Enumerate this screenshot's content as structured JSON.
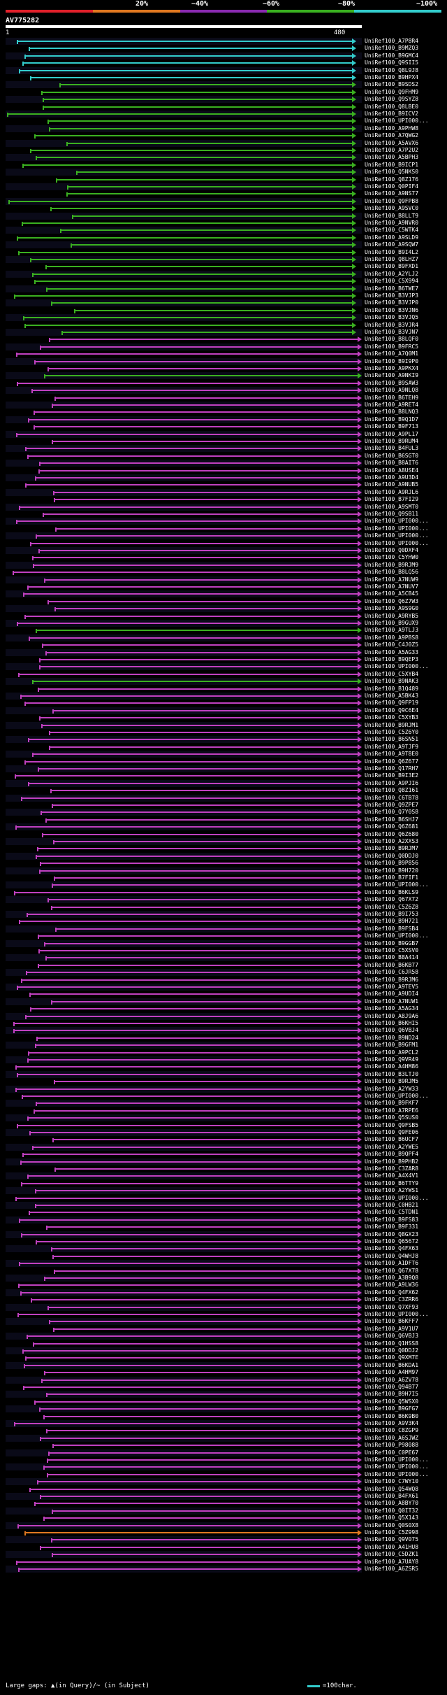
{
  "legend": {
    "labels": [
      "20%",
      "~40%",
      "~60%",
      "~80%",
      "~100%"
    ],
    "colors": [
      "#e0202a",
      "#e07820",
      "#8a2ab0",
      "#3ab020",
      "#33cccc"
    ]
  },
  "query": {
    "name": "AV775282",
    "start": "1",
    "end": "480"
  },
  "footer": {
    "gaps_text": "Large gaps: ▲(in Query)/~ (in Subject)",
    "scale_text": "=100char."
  },
  "hits": [
    {
      "label": "UniRef100_A7P8R4",
      "color": "#33cccc"
    },
    {
      "label": "UniRef100_B9MZQ3",
      "color": "#33cccc"
    },
    {
      "label": "UniRef100_B9GMC4",
      "color": "#33cccc"
    },
    {
      "label": "UniRef100_Q9SII5",
      "color": "#33cccc"
    },
    {
      "label": "UniRef100_Q8L9J8",
      "color": "#33cccc"
    },
    {
      "label": "UniRef100_B9HPX4",
      "color": "#33cccc"
    },
    {
      "label": "UniRef100_B9SDS2",
      "color": "#3ab020"
    },
    {
      "label": "UniRef100_Q9FHM9",
      "color": "#3ab020"
    },
    {
      "label": "UniRef100_Q9SYZ8",
      "color": "#3ab020"
    },
    {
      "label": "UniRef100_Q8LBE0",
      "color": "#3ab020"
    },
    {
      "label": "UniRef100_B9ICV2",
      "color": "#3ab020"
    },
    {
      "label": "UniRef100_UPI000...",
      "color": "#3ab020"
    },
    {
      "label": "UniRef100_A9PHW8",
      "color": "#3ab020"
    },
    {
      "label": "UniRef100_A7QWG2",
      "color": "#3ab020"
    },
    {
      "label": "UniRef100_A5AVX6",
      "color": "#3ab020"
    },
    {
      "label": "UniRef100_A7P2U2",
      "color": "#3ab020"
    },
    {
      "label": "UniRef100_A5BPH3",
      "color": "#3ab020"
    },
    {
      "label": "UniRef100_B9ICP1",
      "color": "#3ab020"
    },
    {
      "label": "UniRef100_Q5NKS0",
      "color": "#3ab020"
    },
    {
      "label": "UniRef100_Q8Z176",
      "color": "#3ab020"
    },
    {
      "label": "UniRef100_Q0PIF4",
      "color": "#3ab020"
    },
    {
      "label": "UniRef100_A9NS77",
      "color": "#3ab020"
    },
    {
      "label": "UniRef100_Q9FPB8",
      "color": "#3ab020"
    },
    {
      "label": "UniRef100_A9SVC0",
      "color": "#3ab020"
    },
    {
      "label": "UniRef100_B8LLT9",
      "color": "#3ab020"
    },
    {
      "label": "UniRef100_A9NVR0",
      "color": "#3ab020"
    },
    {
      "label": "UniRef100_C5WTK4",
      "color": "#3ab020"
    },
    {
      "label": "UniRef100_A9SLD9",
      "color": "#3ab020"
    },
    {
      "label": "UniRef100_A9SQW7",
      "color": "#3ab020"
    },
    {
      "label": "UniRef100_B9I4L2",
      "color": "#3ab020"
    },
    {
      "label": "UniRef100_Q8LHZ7",
      "color": "#3ab020"
    },
    {
      "label": "UniRef100_B9FXD1",
      "color": "#3ab020"
    },
    {
      "label": "UniRef100_A2YLJ2",
      "color": "#3ab020"
    },
    {
      "label": "UniRef100_C5X994",
      "color": "#3ab020"
    },
    {
      "label": "UniRef100_B6TWE7",
      "color": "#3ab020"
    },
    {
      "label": "UniRef100_B3VJP3",
      "color": "#3ab020"
    },
    {
      "label": "UniRef100_B3VJP0",
      "color": "#3ab020"
    },
    {
      "label": "UniRef100_B3VJN6",
      "color": "#3ab020"
    },
    {
      "label": "UniRef100_B3VJQ5",
      "color": "#3ab020"
    },
    {
      "label": "UniRef100_B3VJR4",
      "color": "#3ab020"
    },
    {
      "label": "UniRef100_B3VJN7",
      "color": "#3ab020"
    },
    {
      "label": "UniRef100_B8LQF0",
      "color": "#c040c0"
    },
    {
      "label": "UniRef100_B9FRC5",
      "color": "#c040c0"
    },
    {
      "label": "UniRef100_A7Q0M1",
      "color": "#c040c0"
    },
    {
      "label": "UniRef100_B9I9P0",
      "color": "#c040c0"
    },
    {
      "label": "UniRef100_A9PKX4",
      "color": "#c040c0"
    },
    {
      "label": "UniRef100_A9NKI9",
      "color": "#3ab020"
    },
    {
      "label": "UniRef100_B9SAW3",
      "color": "#c040c0"
    },
    {
      "label": "UniRef100_A9NLQ8",
      "color": "#c040c0"
    },
    {
      "label": "UniRef100_B6TEH9",
      "color": "#c040c0"
    },
    {
      "label": "UniRef100_A9RET4",
      "color": "#c040c0"
    },
    {
      "label": "UniRef100_B8LNQ3",
      "color": "#c040c0"
    },
    {
      "label": "UniRef100_B9Q1D7",
      "color": "#c040c0"
    },
    {
      "label": "UniRef100_B9F713",
      "color": "#c040c0"
    },
    {
      "label": "UniRef100_A9PL17",
      "color": "#c040c0"
    },
    {
      "label": "UniRef100_B9RUM4",
      "color": "#c040c0"
    },
    {
      "label": "UniRef100_B4FUL3",
      "color": "#c040c0"
    },
    {
      "label": "UniRef100_B6SGT0",
      "color": "#c040c0"
    },
    {
      "label": "UniRef100_B8AIT6",
      "color": "#c040c0"
    },
    {
      "label": "UniRef100_A8USE4",
      "color": "#c040c0"
    },
    {
      "label": "UniRef100_A9U3D4",
      "color": "#c040c0"
    },
    {
      "label": "UniRef100_A9NUB5",
      "color": "#c040c0"
    },
    {
      "label": "UniRef100_A9RJL6",
      "color": "#c040c0"
    },
    {
      "label": "UniRef100_B7FI29",
      "color": "#c040c0"
    },
    {
      "label": "UniRef100_A9SMT0",
      "color": "#c040c0"
    },
    {
      "label": "UniRef100_Q9SB11",
      "color": "#c040c0"
    },
    {
      "label": "UniRef100_UPI000...",
      "color": "#c040c0"
    },
    {
      "label": "UniRef100_UPI000...",
      "color": "#c040c0"
    },
    {
      "label": "UniRef100_UPI000...",
      "color": "#c040c0"
    },
    {
      "label": "UniRef100_UPI000...",
      "color": "#c040c0"
    },
    {
      "label": "UniRef100_Q0DXF4",
      "color": "#c040c0"
    },
    {
      "label": "UniRef100_C5YHW0",
      "color": "#c040c0"
    },
    {
      "label": "UniRef100_B9RJM9",
      "color": "#c040c0"
    },
    {
      "label": "UniRef100_B8LQ56",
      "color": "#c040c0"
    },
    {
      "label": "UniRef100_A7NUW9",
      "color": "#c040c0"
    },
    {
      "label": "UniRef100_A7NUV7",
      "color": "#c040c0"
    },
    {
      "label": "UniRef100_A5CB45",
      "color": "#c040c0"
    },
    {
      "label": "UniRef100_Q6Z7W3",
      "color": "#c040c0"
    },
    {
      "label": "UniRef100_A9S9G0",
      "color": "#c040c0"
    },
    {
      "label": "UniRef100_A9RYB5",
      "color": "#c040c0"
    },
    {
      "label": "UniRef100_B9GUX9",
      "color": "#c040c0"
    },
    {
      "label": "UniRef100_A9TLJ3",
      "color": "#3ab020"
    },
    {
      "label": "UniRef100_A9PBS8",
      "color": "#c040c0"
    },
    {
      "label": "UniRef100_C4J0Z5",
      "color": "#c040c0"
    },
    {
      "label": "UniRef100_A5AG33",
      "color": "#c040c0"
    },
    {
      "label": "UniRef100_B9QEP3",
      "color": "#c040c0"
    },
    {
      "label": "UniRef100_UPI000...",
      "color": "#c040c0"
    },
    {
      "label": "UniRef100_C5XYB4",
      "color": "#c040c0"
    },
    {
      "label": "UniRef100_B9NAK3",
      "color": "#3ab020"
    },
    {
      "label": "UniRef100_B1Q489",
      "color": "#c040c0"
    },
    {
      "label": "UniRef100_A5BK43",
      "color": "#c040c0"
    },
    {
      "label": "UniRef100_Q9FP19",
      "color": "#c040c0"
    },
    {
      "label": "UniRef100_Q9C6E4",
      "color": "#c040c0"
    },
    {
      "label": "UniRef100_C5XYB3",
      "color": "#c040c0"
    },
    {
      "label": "UniRef100_B9RJM1",
      "color": "#c040c0"
    },
    {
      "label": "UniRef100_C5Z6Y0",
      "color": "#c040c0"
    },
    {
      "label": "UniRef100_B6SN51",
      "color": "#c040c0"
    },
    {
      "label": "UniRef100_A9TJF9",
      "color": "#c040c0"
    },
    {
      "label": "UniRef100_A9T8E0",
      "color": "#c040c0"
    },
    {
      "label": "UniRef100_Q6Z677",
      "color": "#c040c0"
    },
    {
      "label": "UniRef100_Q17RH7",
      "color": "#c040c0"
    },
    {
      "label": "UniRef100_B9I3E2",
      "color": "#c040c0"
    },
    {
      "label": "UniRef100_A9PJI6",
      "color": "#c040c0"
    },
    {
      "label": "UniRef100_Q8Z161",
      "color": "#c040c0"
    },
    {
      "label": "UniRef100_C6TB78",
      "color": "#c040c0"
    },
    {
      "label": "UniRef100_Q9ZPE7",
      "color": "#c040c0"
    },
    {
      "label": "UniRef100_Q7Y0S8",
      "color": "#c040c0"
    },
    {
      "label": "UniRef100_B6SHJ7",
      "color": "#c040c0"
    },
    {
      "label": "UniRef100_Q6Z681",
      "color": "#c040c0"
    },
    {
      "label": "UniRef100_Q6Z680",
      "color": "#c040c0"
    },
    {
      "label": "UniRef100_A2XXS3",
      "color": "#c040c0"
    },
    {
      "label": "UniRef100_B9RJM7",
      "color": "#c040c0"
    },
    {
      "label": "UniRef100_Q0DDJ0",
      "color": "#c040c0"
    },
    {
      "label": "UniRef100_B9P856",
      "color": "#c040c0"
    },
    {
      "label": "UniRef100_B9H720",
      "color": "#c040c0"
    },
    {
      "label": "UniRef100_B7FIF1",
      "color": "#c040c0"
    },
    {
      "label": "UniRef100_UPI000...",
      "color": "#c040c0"
    },
    {
      "label": "UniRef100_B6KLS9",
      "color": "#c040c0"
    },
    {
      "label": "UniRef100_Q67X72",
      "color": "#c040c0"
    },
    {
      "label": "UniRef100_C5Z6Z8",
      "color": "#c040c0"
    },
    {
      "label": "UniRef100_B9I753",
      "color": "#c040c0"
    },
    {
      "label": "UniRef100_B9H721",
      "color": "#c040c0"
    },
    {
      "label": "UniRef100_B9FSB4",
      "color": "#c040c0"
    },
    {
      "label": "UniRef100_UPI000...",
      "color": "#c040c0"
    },
    {
      "label": "UniRef100_B9GGB7",
      "color": "#c040c0"
    },
    {
      "label": "UniRef100_C5XSV0",
      "color": "#c040c0"
    },
    {
      "label": "UniRef100_B8A414",
      "color": "#c040c0"
    },
    {
      "label": "UniRef100_B6KB77",
      "color": "#c040c0"
    },
    {
      "label": "UniRef100_C6JR58",
      "color": "#c040c0"
    },
    {
      "label": "UniRef100_B9RJM6",
      "color": "#c040c0"
    },
    {
      "label": "UniRef100_A9TEV5",
      "color": "#c040c0"
    },
    {
      "label": "UniRef100_A9UDI4",
      "color": "#c040c0"
    },
    {
      "label": "UniRef100_A7NUW1",
      "color": "#c040c0"
    },
    {
      "label": "UniRef100_A5AG34",
      "color": "#c040c0"
    },
    {
      "label": "UniRef100_A8J9A6",
      "color": "#c040c0"
    },
    {
      "label": "UniRef100_B6KHI5",
      "color": "#c040c0"
    },
    {
      "label": "UniRef100_Q6VBJ4",
      "color": "#c040c0"
    },
    {
      "label": "UniRef100_B9ND24",
      "color": "#c040c0"
    },
    {
      "label": "UniRef100_B9GFM1",
      "color": "#c040c0"
    },
    {
      "label": "UniRef100_A9PCL2",
      "color": "#c040c0"
    },
    {
      "label": "UniRef100_Q9VR49",
      "color": "#c040c0"
    },
    {
      "label": "UniRef100_A4HM86",
      "color": "#c040c0"
    },
    {
      "label": "UniRef100_B3LTJ0",
      "color": "#c040c0"
    },
    {
      "label": "UniRef100_B9RJM5",
      "color": "#c040c0"
    },
    {
      "label": "UniRef100_A2YW33",
      "color": "#c040c0"
    },
    {
      "label": "UniRef100_UPI000...",
      "color": "#c040c0"
    },
    {
      "label": "UniRef100_B9FKF7",
      "color": "#c040c0"
    },
    {
      "label": "UniRef100_A7RPE6",
      "color": "#c040c0"
    },
    {
      "label": "UniRef100_Q5SUS0",
      "color": "#c040c0"
    },
    {
      "label": "UniRef100_Q9FSB5",
      "color": "#c040c0"
    },
    {
      "label": "UniRef100_Q9FE06",
      "color": "#c040c0"
    },
    {
      "label": "UniRef100_B6UCF7",
      "color": "#c040c0"
    },
    {
      "label": "UniRef100_A2YWE5",
      "color": "#c040c0"
    },
    {
      "label": "UniRef100_B9QPF4",
      "color": "#c040c0"
    },
    {
      "label": "UniRef100_B9PHB2",
      "color": "#c040c0"
    },
    {
      "label": "UniRef100_C3ZAR8",
      "color": "#c040c0"
    },
    {
      "label": "UniRef100_A4X4V1",
      "color": "#c040c0"
    },
    {
      "label": "UniRef100_B6TTY9",
      "color": "#c040c0"
    },
    {
      "label": "UniRef100_A2YWS1",
      "color": "#c040c0"
    },
    {
      "label": "UniRef100_UPI000...",
      "color": "#c040c0"
    },
    {
      "label": "UniRef100_C0HB21",
      "color": "#c040c0"
    },
    {
      "label": "UniRef100_C5TDN1",
      "color": "#c040c0"
    },
    {
      "label": "UniRef100_B9FS83",
      "color": "#c040c0"
    },
    {
      "label": "UniRef100_B9F331",
      "color": "#c040c0"
    },
    {
      "label": "UniRef100_Q8GX23",
      "color": "#c040c0"
    },
    {
      "label": "UniRef100_Q65672",
      "color": "#c040c0"
    },
    {
      "label": "UniRef100_Q4FX63",
      "color": "#c040c0"
    },
    {
      "label": "UniRef100_Q4WHJ8",
      "color": "#c040c0"
    },
    {
      "label": "UniRef100_A1DFT6",
      "color": "#c040c0"
    },
    {
      "label": "UniRef100_Q67X78",
      "color": "#c040c0"
    },
    {
      "label": "UniRef100_A3B9Q8",
      "color": "#c040c0"
    },
    {
      "label": "UniRef100_A9LW36",
      "color": "#c040c0"
    },
    {
      "label": "UniRef100_Q4FX62",
      "color": "#c040c0"
    },
    {
      "label": "UniRef100_C3ZRR6",
      "color": "#c040c0"
    },
    {
      "label": "UniRef100_Q7XF93",
      "color": "#c040c0"
    },
    {
      "label": "UniRef100_UPI000...",
      "color": "#c040c0"
    },
    {
      "label": "UniRef100_B6KFF7",
      "color": "#c040c0"
    },
    {
      "label": "UniRef100_A9V1U7",
      "color": "#c040c0"
    },
    {
      "label": "UniRef100_Q6VBJ3",
      "color": "#c040c0"
    },
    {
      "label": "UniRef100_Q1HSS8",
      "color": "#c040c0"
    },
    {
      "label": "UniRef100_Q0DDJ2",
      "color": "#c040c0"
    },
    {
      "label": "UniRef100_Q9XM7E",
      "color": "#c040c0"
    },
    {
      "label": "UniRef100_B6KDA1",
      "color": "#c040c0"
    },
    {
      "label": "UniRef100_A4HM97",
      "color": "#c040c0"
    },
    {
      "label": "UniRef100_A6ZV78",
      "color": "#c040c0"
    },
    {
      "label": "UniRef100_Q94B77",
      "color": "#c040c0"
    },
    {
      "label": "UniRef100_B9H7I5",
      "color": "#c040c0"
    },
    {
      "label": "UniRef100_Q5WSX0",
      "color": "#c040c0"
    },
    {
      "label": "UniRef100_B9GFG7",
      "color": "#c040c0"
    },
    {
      "label": "UniRef100_B6K9B0",
      "color": "#c040c0"
    },
    {
      "label": "UniRef100_A9V3K4",
      "color": "#c040c0"
    },
    {
      "label": "UniRef100_C8ZGP9",
      "color": "#c040c0"
    },
    {
      "label": "UniRef100_A6SJWZ",
      "color": "#c040c0"
    },
    {
      "label": "UniRef100_P98088",
      "color": "#c040c0"
    },
    {
      "label": "UniRef100_C0PE67",
      "color": "#c040c0"
    },
    {
      "label": "UniRef100_UPI000...",
      "color": "#c040c0"
    },
    {
      "label": "UniRef100_UPI000...",
      "color": "#c040c0"
    },
    {
      "label": "UniRef100_UPI000...",
      "color": "#c040c0"
    },
    {
      "label": "UniRef100_C7WY10",
      "color": "#c040c0"
    },
    {
      "label": "UniRef100_Q54WQ8",
      "color": "#c040c0"
    },
    {
      "label": "UniRef100_B4FX61",
      "color": "#c040c0"
    },
    {
      "label": "UniRef100_A8BY70",
      "color": "#c040c0"
    },
    {
      "label": "UniRef100_Q0IT32",
      "color": "#c040c0"
    },
    {
      "label": "UniRef100_Q5X143",
      "color": "#c040c0"
    },
    {
      "label": "UniRef100_Q0S0X8",
      "color": "#c040c0"
    },
    {
      "label": "UniRef100_C5Z998",
      "color": "#e07820"
    },
    {
      "label": "UniRef100_Q9V075",
      "color": "#c040c0"
    },
    {
      "label": "UniRef100_A41HU8",
      "color": "#c040c0"
    },
    {
      "label": "UniRef100_C5DZK1",
      "color": "#c040c0"
    },
    {
      "label": "UniRef100_A7UAY8",
      "color": "#c040c0"
    },
    {
      "label": "UniRef100_A6ZSR5",
      "color": "#c040c0"
    }
  ]
}
